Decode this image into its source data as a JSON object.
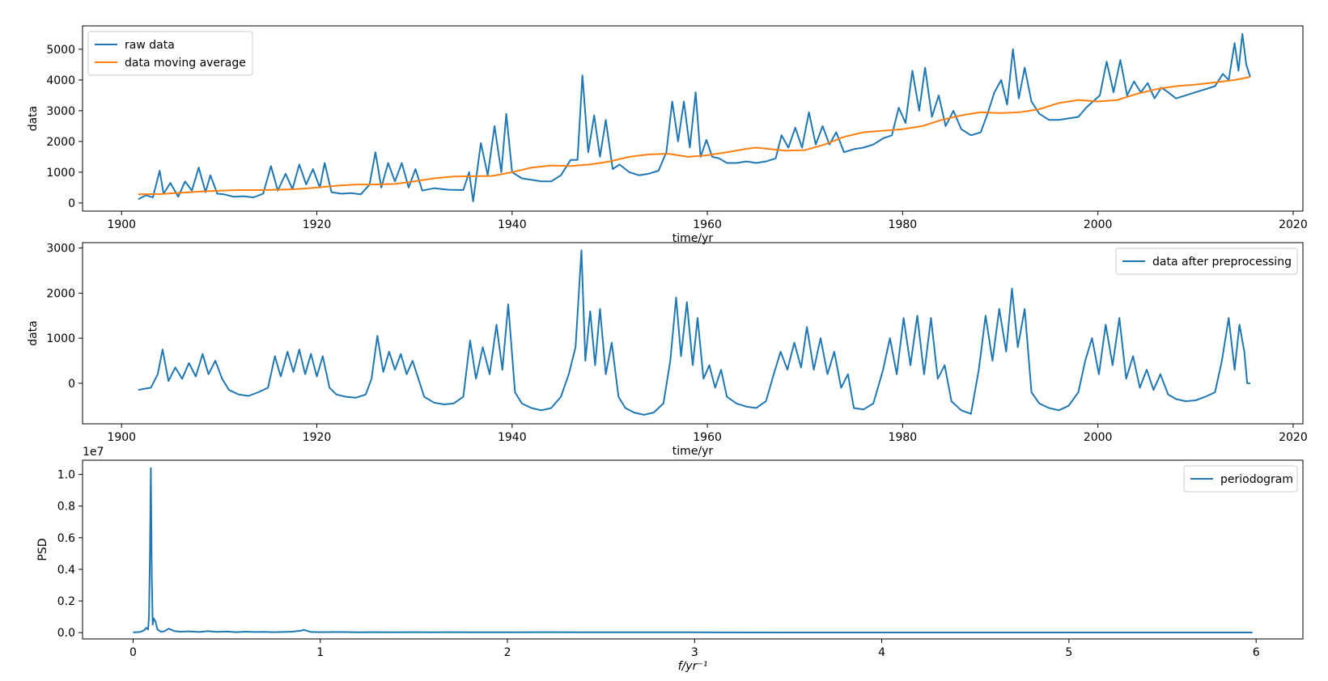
{
  "chart_data": [
    {
      "type": "line",
      "xlabel": "time/yr",
      "ylabel": "data",
      "xlim": [
        1896,
        2021
      ],
      "ylim": [
        -265,
        5760
      ],
      "xticks": [
        1900,
        1920,
        1940,
        1960,
        1980,
        2000,
        2020
      ],
      "yticks": [
        0,
        1000,
        2000,
        3000,
        4000,
        5000
      ],
      "grid": false,
      "legend_position": "upper left",
      "series": [
        {
          "name": "raw data",
          "color": "#1f77b4",
          "x": [
            1901.7,
            1902.5,
            1903.2,
            1903.9,
            1904.3,
            1905.0,
            1905.8,
            1906.5,
            1907.2,
            1907.9,
            1908.6,
            1909.1,
            1909.8,
            1910.5,
            1911.5,
            1912.5,
            1913.5,
            1914.5,
            1915.3,
            1916.0,
            1916.8,
            1917.5,
            1918.2,
            1918.9,
            1919.6,
            1920.3,
            1920.8,
            1921.5,
            1922.5,
            1923.5,
            1924.5,
            1925.4,
            1926.0,
            1926.6,
            1927.3,
            1928.0,
            1928.7,
            1929.4,
            1930.1,
            1930.8,
            1932.0,
            1933.5,
            1935.0,
            1935.6,
            1936.0,
            1936.8,
            1937.5,
            1938.2,
            1938.9,
            1939.4,
            1940.0,
            1941.0,
            1942.0,
            1943.0,
            1944.0,
            1945.0,
            1946.0,
            1946.7,
            1947.2,
            1947.8,
            1948.4,
            1949.0,
            1949.6,
            1950.3,
            1951.0,
            1952.0,
            1953.0,
            1954.0,
            1955.0,
            1955.8,
            1956.4,
            1957.0,
            1957.6,
            1958.2,
            1958.8,
            1959.3,
            1959.9,
            1960.5,
            1961.2,
            1962.0,
            1963.0,
            1964.0,
            1965.0,
            1966.0,
            1967.0,
            1967.6,
            1968.3,
            1969.0,
            1969.7,
            1970.4,
            1971.1,
            1971.8,
            1972.5,
            1973.2,
            1974.0,
            1975.0,
            1976.0,
            1977.0,
            1978.0,
            1978.9,
            1979.6,
            1980.3,
            1981.0,
            1981.7,
            1982.3,
            1983.0,
            1983.7,
            1984.4,
            1985.2,
            1986.0,
            1987.0,
            1988.0,
            1988.7,
            1989.4,
            1990.1,
            1990.7,
            1991.3,
            1991.9,
            1992.5,
            1993.2,
            1994.0,
            1995.0,
            1996.0,
            1997.0,
            1998.0,
            1998.8,
            1999.5,
            2000.2,
            2000.9,
            2001.6,
            2002.3,
            2003.0,
            2003.7,
            2004.4,
            2005.1,
            2005.8,
            2006.5,
            2007.2,
            2008.0,
            2009.0,
            2010.0,
            2011.0,
            2012.0,
            2012.8,
            2013.4,
            2014.0,
            2014.4,
            2014.8,
            2015.2,
            2015.6
          ],
          "y": [
            120,
            250,
            180,
            1050,
            300,
            650,
            200,
            700,
            400,
            1150,
            350,
            900,
            300,
            280,
            200,
            220,
            180,
            300,
            1200,
            400,
            950,
            450,
            1250,
            600,
            1100,
            500,
            1300,
            350,
            300,
            320,
            280,
            600,
            1650,
            500,
            1300,
            700,
            1300,
            500,
            1100,
            400,
            480,
            430,
            420,
            1000,
            50,
            1950,
            900,
            2500,
            1000,
            2900,
            1000,
            800,
            750,
            700,
            700,
            900,
            1400,
            1400,
            4150,
            1650,
            2850,
            1500,
            2700,
            1100,
            1250,
            1000,
            900,
            950,
            1050,
            1650,
            3300,
            2000,
            3300,
            1800,
            3600,
            1500,
            2050,
            1500,
            1450,
            1300,
            1300,
            1350,
            1300,
            1350,
            1450,
            2200,
            1800,
            2450,
            1800,
            2950,
            1900,
            2500,
            1900,
            2300,
            1650,
            1750,
            1800,
            1900,
            2100,
            2200,
            3100,
            2600,
            4300,
            3000,
            4400,
            2800,
            3500,
            2500,
            3000,
            2400,
            2200,
            2300,
            2900,
            3600,
            4000,
            3200,
            5000,
            3400,
            4400,
            3300,
            2900,
            2700,
            2700,
            2750,
            2800,
            3100,
            3300,
            3500,
            4600,
            3600,
            4650,
            3500,
            3950,
            3600,
            3900,
            3400,
            3750,
            3600,
            3400,
            3500,
            3600,
            3700,
            3800,
            4200,
            4000,
            5200,
            4300,
            5500,
            4500,
            4100
          ]
        },
        {
          "name": "data moving average",
          "color": "#ff7f0e",
          "x": [
            1901.7,
            1904,
            1906,
            1908,
            1910,
            1912,
            1914,
            1916,
            1918,
            1920,
            1922,
            1924,
            1926,
            1928,
            1930,
            1932,
            1934,
            1936,
            1938,
            1940,
            1942,
            1944,
            1946,
            1948,
            1950,
            1952,
            1954,
            1956,
            1958,
            1960,
            1962,
            1964,
            1965,
            1966,
            1968,
            1970,
            1972,
            1974,
            1976,
            1978,
            1980,
            1982,
            1984,
            1986,
            1988,
            1990,
            1992,
            1994,
            1996,
            1998,
            2000,
            2002,
            2004,
            2006,
            2008,
            2010,
            2012,
            2014,
            2015.6
          ],
          "y": [
            280,
            290,
            330,
            370,
            400,
            420,
            420,
            430,
            450,
            500,
            560,
            600,
            600,
            620,
            700,
            800,
            860,
            870,
            880,
            1000,
            1150,
            1220,
            1200,
            1250,
            1350,
            1500,
            1580,
            1600,
            1500,
            1550,
            1650,
            1760,
            1800,
            1770,
            1700,
            1720,
            1900,
            2150,
            2300,
            2350,
            2400,
            2500,
            2700,
            2850,
            2950,
            2920,
            2950,
            3050,
            3250,
            3350,
            3300,
            3350,
            3550,
            3700,
            3800,
            3850,
            3920,
            4000,
            4100
          ]
        }
      ]
    },
    {
      "type": "line",
      "xlabel": "time/yr",
      "ylabel": "data",
      "xlim": [
        1896,
        2021
      ],
      "ylim": [
        -900,
        3120
      ],
      "xticks": [
        1900,
        1920,
        1940,
        1960,
        1980,
        2000,
        2020
      ],
      "yticks": [
        0,
        1000,
        2000,
        3000
      ],
      "grid": false,
      "legend_position": "upper right",
      "series": [
        {
          "name": "data after preprocessing",
          "color": "#1f77b4",
          "x": [
            1901.7,
            1902.4,
            1903.0,
            1903.7,
            1904.2,
            1904.8,
            1905.5,
            1906.2,
            1906.9,
            1907.6,
            1908.3,
            1908.9,
            1909.6,
            1910.3,
            1911.0,
            1912.0,
            1913.0,
            1914.0,
            1915.0,
            1915.7,
            1916.3,
            1917.0,
            1917.6,
            1918.2,
            1918.8,
            1919.4,
            1920.0,
            1920.6,
            1921.3,
            1922.0,
            1923.0,
            1924.0,
            1925.0,
            1925.6,
            1926.2,
            1926.8,
            1927.4,
            1928.0,
            1928.6,
            1929.2,
            1929.8,
            1930.4,
            1931.0,
            1932.0,
            1933.0,
            1934.0,
            1935.0,
            1935.7,
            1936.3,
            1937.0,
            1937.7,
            1938.4,
            1939.0,
            1939.6,
            1940.3,
            1941.0,
            1942.0,
            1943.0,
            1944.0,
            1945.0,
            1945.8,
            1946.5,
            1947.1,
            1947.5,
            1948.0,
            1948.5,
            1949.0,
            1949.6,
            1950.2,
            1950.9,
            1951.6,
            1952.5,
            1953.5,
            1954.5,
            1955.5,
            1956.2,
            1956.8,
            1957.3,
            1957.9,
            1958.5,
            1959.0,
            1959.6,
            1960.2,
            1960.8,
            1961.4,
            1962.0,
            1963.0,
            1964.0,
            1965.0,
            1966.0,
            1966.8,
            1967.5,
            1968.2,
            1968.9,
            1969.6,
            1970.2,
            1970.9,
            1971.6,
            1972.3,
            1973.0,
            1973.7,
            1974.4,
            1975.0,
            1976.0,
            1977.0,
            1978.0,
            1978.7,
            1979.4,
            1980.1,
            1980.8,
            1981.5,
            1982.2,
            1982.9,
            1983.6,
            1984.3,
            1985.0,
            1986.0,
            1987.0,
            1987.8,
            1988.5,
            1989.2,
            1989.9,
            1990.6,
            1991.2,
            1991.8,
            1992.5,
            1993.2,
            1994.0,
            1995.0,
            1996.0,
            1997.0,
            1998.0,
            1998.7,
            1999.4,
            2000.1,
            2000.8,
            2001.5,
            2002.2,
            2002.9,
            2003.6,
            2004.3,
            2005.0,
            2005.7,
            2006.4,
            2007.2,
            2008.0,
            2009.0,
            2010.0,
            2011.0,
            2012.0,
            2012.7,
            2013.4,
            2014.0,
            2014.5,
            2015.0,
            2015.3,
            2015.6
          ],
          "y": [
            -150,
            -120,
            -100,
            200,
            750,
            50,
            350,
            100,
            450,
            150,
            650,
            200,
            500,
            100,
            -150,
            -250,
            -280,
            -200,
            -100,
            600,
            150,
            700,
            250,
            750,
            200,
            650,
            150,
            600,
            -100,
            -250,
            -300,
            -320,
            -250,
            100,
            1050,
            250,
            700,
            300,
            650,
            200,
            500,
            100,
            -300,
            -430,
            -470,
            -450,
            -300,
            950,
            100,
            800,
            200,
            1300,
            300,
            1750,
            -200,
            -450,
            -550,
            -600,
            -550,
            -300,
            200,
            800,
            2950,
            500,
            1600,
            400,
            1650,
            200,
            900,
            -300,
            -550,
            -650,
            -700,
            -650,
            -450,
            500,
            1900,
            600,
            1800,
            400,
            1450,
            100,
            400,
            -100,
            300,
            -300,
            -450,
            -520,
            -550,
            -400,
            200,
            700,
            300,
            900,
            350,
            1250,
            300,
            1000,
            200,
            700,
            -100,
            200,
            -550,
            -580,
            -450,
            300,
            1000,
            200,
            1450,
            400,
            1500,
            200,
            1450,
            100,
            400,
            -400,
            -600,
            -680,
            300,
            1500,
            500,
            1650,
            700,
            2100,
            800,
            1650,
            -200,
            -450,
            -550,
            -600,
            -500,
            -200,
            500,
            1000,
            200,
            1300,
            400,
            1450,
            100,
            600,
            -100,
            300,
            -150,
            200,
            -250,
            -350,
            -400,
            -380,
            -300,
            -200,
            500,
            1450,
            300,
            1300,
            700,
            0,
            0
          ]
        }
      ]
    },
    {
      "type": "line",
      "xlabel": "f/yr⁻¹",
      "ylabel": "PSD",
      "offset_label": "1e7",
      "xlim": [
        -0.27,
        6.25
      ],
      "ylim": [
        -0.04,
        1.09
      ],
      "xticks": [
        0,
        1,
        2,
        3,
        4,
        5,
        6
      ],
      "yticks": [
        0.0,
        0.2,
        0.4,
        0.6,
        0.8,
        1.0
      ],
      "grid": false,
      "legend_position": "upper right",
      "series": [
        {
          "name": "periodogram",
          "color": "#1f77b4",
          "x": [
            0.0,
            0.02,
            0.04,
            0.06,
            0.07,
            0.08,
            0.085,
            0.09,
            0.095,
            0.1,
            0.105,
            0.11,
            0.12,
            0.13,
            0.15,
            0.17,
            0.19,
            0.2,
            0.22,
            0.25,
            0.3,
            0.35,
            0.4,
            0.45,
            0.5,
            0.55,
            0.6,
            0.65,
            0.7,
            0.75,
            0.8,
            0.85,
            0.9,
            0.91,
            0.95,
            1.0,
            1.1,
            1.2,
            1.3,
            1.4,
            1.5,
            1.6,
            1.7,
            1.8,
            1.9,
            2.0,
            2.2,
            2.4,
            2.6,
            2.8,
            3.0,
            3.5,
            4.0,
            4.5,
            5.0,
            5.5,
            5.98
          ],
          "y": [
            0.002,
            0.003,
            0.005,
            0.015,
            0.03,
            0.02,
            0.1,
            0.5,
            1.04,
            0.35,
            0.05,
            0.09,
            0.07,
            0.02,
            0.005,
            0.01,
            0.025,
            0.02,
            0.01,
            0.006,
            0.008,
            0.004,
            0.009,
            0.005,
            0.007,
            0.003,
            0.006,
            0.004,
            0.005,
            0.003,
            0.004,
            0.006,
            0.012,
            0.018,
            0.004,
            0.003,
            0.004,
            0.002,
            0.003,
            0.002,
            0.003,
            0.002,
            0.003,
            0.002,
            0.002,
            0.002,
            0.003,
            0.002,
            0.002,
            0.002,
            0.002,
            0.001,
            0.001,
            0.001,
            0.001,
            0.001,
            0.001
          ]
        }
      ]
    }
  ]
}
